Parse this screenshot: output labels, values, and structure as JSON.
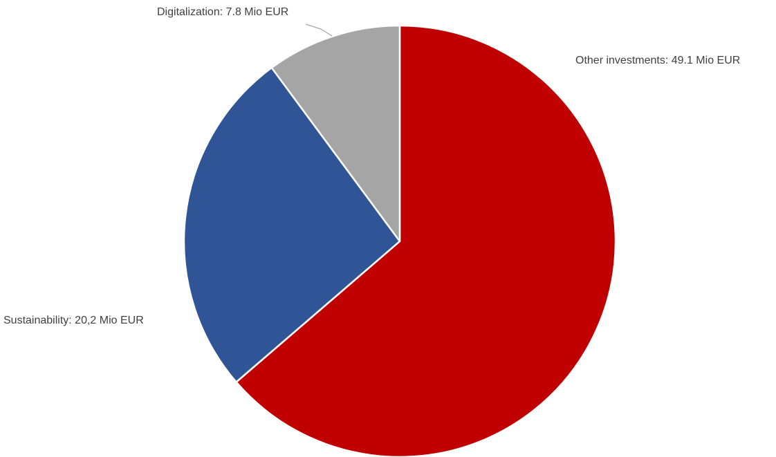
{
  "chart_data": {
    "type": "pie",
    "title": "",
    "unit": "Mio EUR",
    "slices": [
      {
        "label": "Other investments",
        "value": 49.1,
        "label_text": "Other investments: 49.1 Mio EUR",
        "color": "#c00000"
      },
      {
        "label": "Sustainability",
        "value": 20.2,
        "label_text": "Sustainability: 20,2 Mio EUR",
        "color": "#2f5597"
      },
      {
        "label": "Digitalization",
        "value": 7.8,
        "label_text": "Digitalization: 7.8 Mio EUR",
        "color": "#a5a5a5"
      }
    ],
    "start_angle": "12 o'clock",
    "direction": "clockwise",
    "slice_border_color": "#ffffff",
    "leader_line_color": "#a6a6a6"
  }
}
